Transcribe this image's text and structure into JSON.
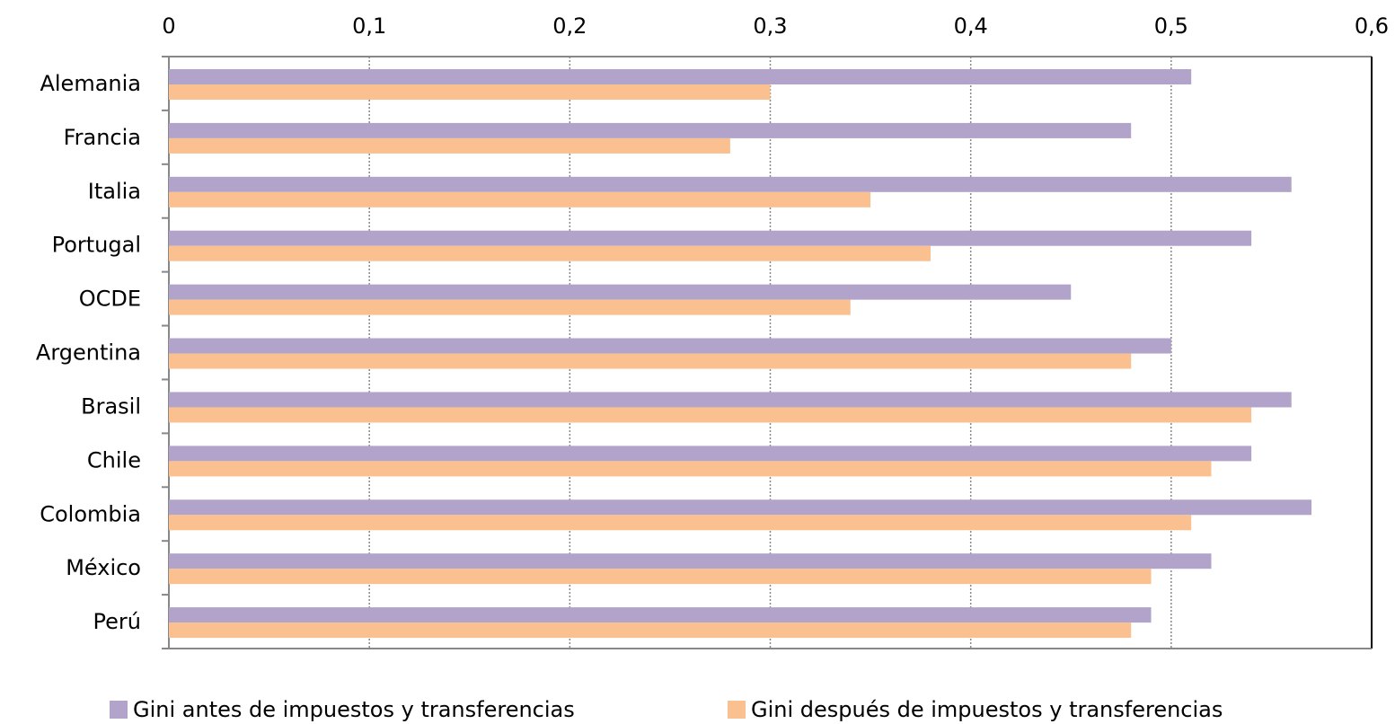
{
  "chart_data": {
    "type": "bar",
    "orientation": "horizontal",
    "categories": [
      "Alemania",
      "Francia",
      "Italia",
      "Portugal",
      "OCDE",
      "Argentina",
      "Brasil",
      "Chile",
      "Colombia",
      "México",
      "Perú"
    ],
    "series": [
      {
        "name": "Gini antes de impuestos y transferencias",
        "color": "#b1a3c9",
        "values": [
          0.51,
          0.48,
          0.56,
          0.54,
          0.45,
          0.5,
          0.56,
          0.54,
          0.57,
          0.52,
          0.49
        ]
      },
      {
        "name": "Gini después de impuestos y transferencias",
        "color": "#fac090",
        "values": [
          0.3,
          0.28,
          0.35,
          0.38,
          0.34,
          0.48,
          0.54,
          0.52,
          0.51,
          0.49,
          0.48
        ]
      }
    ],
    "xlim": [
      0,
      0.6
    ],
    "xticks": [
      0,
      {
        "value": 0.1,
        "label": "0,1"
      },
      {
        "value": 0.2,
        "label": "0,2"
      },
      {
        "value": 0.3,
        "label": "0,3"
      },
      {
        "value": 0.4,
        "label": "0,4"
      },
      {
        "value": 0.5,
        "label": "0,5"
      },
      {
        "value": 0.6,
        "label": "0,6"
      }
    ],
    "grid": true,
    "legend": "bottom"
  }
}
